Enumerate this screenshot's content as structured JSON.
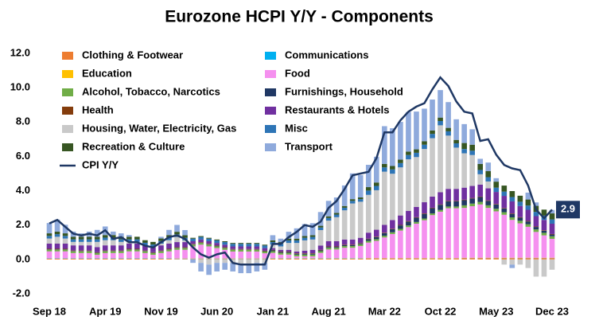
{
  "chart_data": {
    "type": "bar",
    "title": "Eurozone HCPI Y/Y - Components",
    "categories": [
      "Sep 18",
      null,
      null,
      null,
      null,
      null,
      null,
      "Apr 19",
      null,
      null,
      null,
      null,
      null,
      null,
      "Nov 19",
      null,
      null,
      null,
      null,
      null,
      null,
      "Jun 20",
      null,
      null,
      null,
      null,
      null,
      null,
      "Jan 21",
      null,
      null,
      null,
      null,
      null,
      null,
      "Aug 21",
      null,
      null,
      null,
      null,
      null,
      null,
      "Mar 22",
      null,
      null,
      null,
      null,
      null,
      null,
      "Oct 22",
      null,
      null,
      null,
      null,
      null,
      null,
      "May 23",
      null,
      null,
      null,
      null,
      null,
      null,
      "Dec 23"
    ],
    "ylim": [
      -2,
      12
    ],
    "yticks": [
      {
        "value": -2,
        "label": "-2.0"
      },
      {
        "value": 0,
        "label": "0.0"
      },
      {
        "value": 2,
        "label": "2.0"
      },
      {
        "value": 4,
        "label": "4.0"
      },
      {
        "value": 6,
        "label": "6.0"
      },
      {
        "value": 8,
        "label": "8.0"
      },
      {
        "value": 10,
        "label": "10.0"
      },
      {
        "value": 12,
        "label": "12.0"
      }
    ],
    "stacked": true,
    "series": [
      {
        "name": "Clothing & Footwear",
        "color": "#ed7d31",
        "values": [
          0.04,
          0.04,
          0.04,
          0.04,
          0.04,
          0.04,
          0.04,
          0.04,
          0.04,
          0.04,
          0.04,
          0.04,
          0.04,
          0.04,
          0.04,
          0.04,
          0.03,
          0.03,
          0.03,
          0.03,
          0.03,
          0.03,
          0.03,
          0.03,
          0.03,
          0.03,
          0.03,
          0.03,
          0.05,
          0.05,
          0.05,
          0.05,
          0.05,
          0.05,
          0.05,
          0.05,
          0.05,
          0.05,
          0.05,
          0.05,
          0.06,
          0.06,
          0.06,
          0.06,
          0.06,
          0.06,
          0.06,
          0.06,
          0.06,
          0.06,
          0.06,
          0.06,
          0.08,
          0.08,
          0.08,
          0.08,
          0.08,
          0.08,
          0.08,
          0.08,
          0.08,
          0.08,
          0.08,
          0.08
        ]
      },
      {
        "name": "Communications",
        "color": "#00b0f0",
        "values": [
          0.02,
          0.02,
          0.02,
          0.02,
          0.02,
          0.02,
          0.02,
          0.02,
          0.02,
          0.02,
          0.02,
          0.02,
          0.02,
          0.02,
          0.02,
          0.02,
          0.02,
          0.02,
          0.02,
          0.02,
          0.02,
          0.02,
          0.02,
          0.02,
          0.02,
          0.02,
          0.02,
          0.02,
          0.02,
          0.02,
          0.02,
          0.02,
          0.02,
          0.02,
          0.02,
          0.02,
          0.02,
          0.02,
          0.02,
          0.02,
          0.01,
          0.01,
          0.01,
          0.01,
          0.01,
          0.01,
          0.01,
          0.01,
          0.01,
          0.01,
          0.01,
          0.01,
          0.01,
          0.01,
          0.01,
          0.01,
          0.01,
          0.01,
          0.01,
          0.01,
          0.01,
          0.01,
          0.01,
          0.01
        ]
      },
      {
        "name": "Education",
        "color": "#ffc000",
        "values": [
          0.01,
          0.01,
          0.01,
          0.01,
          0.01,
          0.01,
          0.01,
          0.01,
          0.01,
          0.01,
          0.01,
          0.01,
          0.01,
          0.01,
          0.01,
          0.01,
          0.01,
          0.01,
          0.01,
          0.01,
          0.01,
          0.01,
          0.01,
          0.01,
          0.01,
          0.01,
          0.01,
          0.01,
          0.01,
          0.01,
          0.01,
          0.01,
          0.01,
          0.01,
          0.01,
          0.01,
          0.01,
          0.01,
          0.01,
          0.01,
          0.01,
          0.01,
          0.01,
          0.01,
          0.01,
          0.01,
          0.01,
          0.01,
          0.01,
          0.01,
          0.01,
          0.01,
          0.01,
          0.01,
          0.01,
          0.01,
          0.01,
          0.01,
          0.01,
          0.01,
          0.01,
          0.01,
          0.01,
          0.01
        ]
      },
      {
        "name": "Food",
        "color": "#f590ef",
        "values": [
          0.4,
          0.4,
          0.4,
          0.3,
          0.3,
          0.3,
          0.2,
          0.3,
          0.3,
          0.3,
          0.4,
          0.4,
          0.3,
          0.2,
          0.3,
          0.4,
          0.5,
          0.5,
          0.7,
          0.8,
          0.7,
          0.6,
          0.5,
          0.4,
          0.4,
          0.4,
          0.4,
          0.3,
          0.3,
          0.2,
          0.2,
          0.1,
          0.1,
          0.1,
          0.3,
          0.5,
          0.5,
          0.6,
          0.6,
          0.7,
          0.9,
          1.0,
          1.2,
          1.4,
          1.6,
          1.8,
          2.0,
          2.2,
          2.5,
          2.7,
          2.9,
          2.9,
          2.9,
          3.0,
          3.1,
          2.9,
          2.7,
          2.5,
          2.2,
          2.0,
          1.8,
          1.5,
          1.3,
          1.1
        ]
      },
      {
        "name": "Alcohol, Tobacco, Narcotics",
        "color": "#70ad47",
        "values": [
          0.1,
          0.1,
          0.1,
          0.1,
          0.1,
          0.1,
          0.1,
          0.1,
          0.1,
          0.1,
          0.1,
          0.1,
          0.1,
          0.1,
          0.1,
          0.1,
          0.1,
          0.1,
          0.1,
          0.1,
          0.1,
          0.1,
          0.1,
          0.1,
          0.1,
          0.1,
          0.1,
          0.1,
          0.1,
          0.1,
          0.1,
          0.1,
          0.1,
          0.1,
          0.1,
          0.1,
          0.1,
          0.1,
          0.1,
          0.1,
          0.1,
          0.1,
          0.1,
          0.1,
          0.1,
          0.1,
          0.1,
          0.1,
          0.1,
          0.1,
          0.1,
          0.1,
          0.15,
          0.15,
          0.15,
          0.15,
          0.15,
          0.15,
          0.15,
          0.15,
          0.15,
          0.15,
          0.15,
          0.15
        ]
      },
      {
        "name": "Furnishings, Household",
        "color": "#203864",
        "values": [
          0.02,
          0.02,
          0.02,
          0.02,
          0.02,
          0.02,
          0.02,
          0.02,
          0.02,
          0.02,
          0.02,
          0.02,
          0.02,
          0.02,
          0.02,
          0.02,
          0.02,
          0.02,
          0.02,
          0.02,
          0.02,
          0.02,
          0.02,
          0.02,
          0.02,
          0.02,
          0.02,
          0.02,
          0.05,
          0.05,
          0.05,
          0.05,
          0.05,
          0.05,
          0.05,
          0.05,
          0.05,
          0.05,
          0.05,
          0.05,
          0.1,
          0.12,
          0.15,
          0.18,
          0.2,
          0.22,
          0.25,
          0.27,
          0.3,
          0.3,
          0.3,
          0.3,
          0.3,
          0.3,
          0.28,
          0.26,
          0.25,
          0.22,
          0.2,
          0.18,
          0.16,
          0.14,
          0.12,
          0.1
        ]
      },
      {
        "name": "Health",
        "color": "#843c0c",
        "values": [
          0.03,
          0.03,
          0.03,
          0.03,
          0.03,
          0.03,
          0.03,
          0.03,
          0.03,
          0.03,
          0.03,
          0.03,
          0.03,
          0.03,
          0.03,
          0.03,
          0.03,
          0.03,
          0.03,
          0.03,
          0.03,
          0.03,
          0.03,
          0.03,
          0.03,
          0.03,
          0.03,
          0.03,
          0.03,
          0.03,
          0.03,
          0.03,
          0.03,
          0.03,
          0.03,
          0.03,
          0.03,
          0.03,
          0.03,
          0.03,
          0.03,
          0.03,
          0.03,
          0.03,
          0.03,
          0.03,
          0.03,
          0.03,
          0.03,
          0.03,
          0.03,
          0.03,
          0.03,
          0.03,
          0.03,
          0.03,
          0.03,
          0.03,
          0.03,
          0.03,
          0.03,
          0.03,
          0.03,
          0.03
        ]
      },
      {
        "name": "Restaurants & Hotels",
        "color": "#7030a0",
        "values": [
          0.3,
          0.3,
          0.3,
          0.3,
          0.3,
          0.3,
          0.3,
          0.3,
          0.3,
          0.3,
          0.3,
          0.3,
          0.3,
          0.3,
          0.3,
          0.3,
          0.3,
          0.3,
          0.15,
          0.15,
          0.15,
          0.15,
          0.15,
          0.15,
          0.15,
          0.15,
          0.15,
          0.15,
          0.1,
          0.1,
          0.1,
          0.1,
          0.15,
          0.2,
          0.25,
          0.3,
          0.3,
          0.3,
          0.3,
          0.3,
          0.35,
          0.4,
          0.45,
          0.5,
          0.55,
          0.6,
          0.6,
          0.65,
          0.65,
          0.7,
          0.7,
          0.7,
          0.7,
          0.7,
          0.7,
          0.7,
          0.7,
          0.7,
          0.7,
          0.65,
          0.65,
          0.6,
          0.6,
          0.6
        ]
      },
      {
        "name": "Housing, Water, Electricity, Gas",
        "color": "#c9c9c9",
        "values": [
          0.3,
          0.4,
          0.3,
          0.2,
          0.2,
          0.2,
          0.3,
          0.3,
          0.3,
          0.2,
          0.1,
          0.1,
          0.0,
          0.0,
          0.1,
          0.2,
          0.3,
          0.1,
          0.0,
          -0.2,
          -0.3,
          -0.2,
          -0.2,
          -0.2,
          -0.3,
          -0.3,
          -0.2,
          -0.2,
          0.2,
          0.2,
          0.4,
          0.5,
          0.6,
          0.6,
          0.9,
          1.2,
          1.4,
          1.7,
          2.1,
          2.1,
          2.2,
          2.3,
          3.1,
          2.7,
          2.8,
          3.0,
          2.9,
          3.1,
          3.4,
          3.9,
          3.1,
          2.4,
          2.0,
          1.8,
          0.6,
          0.4,
          0.0,
          -0.3,
          -0.3,
          -0.3,
          -0.5,
          -1.0,
          -1.0,
          -0.6
        ]
      },
      {
        "name": "Misc",
        "color": "#2e75b6",
        "values": [
          0.15,
          0.15,
          0.15,
          0.15,
          0.15,
          0.15,
          0.15,
          0.15,
          0.15,
          0.15,
          0.15,
          0.15,
          0.15,
          0.15,
          0.15,
          0.15,
          0.15,
          0.15,
          0.15,
          0.15,
          0.15,
          0.15,
          0.15,
          0.15,
          0.15,
          0.15,
          0.15,
          0.15,
          0.15,
          0.15,
          0.15,
          0.15,
          0.15,
          0.15,
          0.15,
          0.15,
          0.15,
          0.15,
          0.15,
          0.15,
          0.25,
          0.25,
          0.25,
          0.25,
          0.25,
          0.25,
          0.25,
          0.25,
          0.25,
          0.25,
          0.25,
          0.25,
          0.25,
          0.25,
          0.25,
          0.25,
          0.25,
          0.25,
          0.25,
          0.25,
          0.25,
          0.25,
          0.25,
          0.25
        ]
      },
      {
        "name": "Recreation & Culture",
        "color": "#375623",
        "values": [
          0.15,
          0.15,
          0.15,
          0.15,
          0.15,
          0.15,
          0.15,
          0.15,
          0.15,
          0.15,
          0.15,
          0.15,
          0.15,
          0.15,
          0.15,
          0.15,
          0.15,
          0.15,
          0.05,
          0.05,
          0.05,
          0.05,
          0.05,
          0.05,
          0.05,
          0.05,
          0.05,
          0.05,
          0.1,
          0.1,
          0.1,
          0.1,
          0.1,
          0.1,
          0.1,
          0.1,
          0.1,
          0.1,
          0.1,
          0.1,
          0.2,
          0.2,
          0.2,
          0.2,
          0.2,
          0.2,
          0.2,
          0.2,
          0.2,
          0.2,
          0.2,
          0.2,
          0.35,
          0.35,
          0.35,
          0.35,
          0.35,
          0.35,
          0.35,
          0.35,
          0.35,
          0.35,
          0.35,
          0.35
        ]
      },
      {
        "name": "Transport",
        "color": "#8faadc",
        "values": [
          0.6,
          0.7,
          0.5,
          0.3,
          0.2,
          0.3,
          0.4,
          0.5,
          0.2,
          0.2,
          0.1,
          0.0,
          0.0,
          0.0,
          0.1,
          0.3,
          0.4,
          0.3,
          -0.2,
          -0.5,
          -0.6,
          -0.5,
          -0.4,
          -0.5,
          -0.5,
          -0.5,
          -0.5,
          -0.4,
          0.3,
          0.2,
          0.4,
          0.6,
          0.7,
          0.7,
          0.8,
          0.9,
          0.9,
          1.2,
          1.5,
          1.3,
          1.3,
          1.5,
          2.2,
          2.2,
          2.2,
          2.3,
          2.2,
          1.9,
          1.8,
          1.6,
          1.5,
          1.2,
          1.1,
          0.9,
          0.3,
          0.5,
          0.2,
          0.0,
          -0.2,
          0.0,
          0.4,
          0.2,
          0.0,
          0.2
        ]
      },
      {
        "name": "CPI Y/Y",
        "type": "line",
        "color": "#1f3864",
        "values": [
          2.1,
          2.3,
          1.9,
          1.5,
          1.4,
          1.5,
          1.4,
          1.7,
          1.2,
          1.3,
          1.0,
          1.0,
          0.8,
          0.7,
          1.0,
          1.3,
          1.4,
          1.2,
          0.7,
          0.3,
          0.1,
          0.3,
          0.4,
          -0.2,
          -0.3,
          -0.3,
          -0.3,
          -0.3,
          0.9,
          0.9,
          1.3,
          1.6,
          2.0,
          1.9,
          2.2,
          3.0,
          3.4,
          4.1,
          4.9,
          5.0,
          5.1,
          5.9,
          7.4,
          7.4,
          8.1,
          8.6,
          8.9,
          9.1,
          9.9,
          10.6,
          10.1,
          9.2,
          8.6,
          8.5,
          6.9,
          7.0,
          6.1,
          5.5,
          5.3,
          5.2,
          4.3,
          2.9,
          2.4,
          2.9
        ]
      }
    ]
  }
}
